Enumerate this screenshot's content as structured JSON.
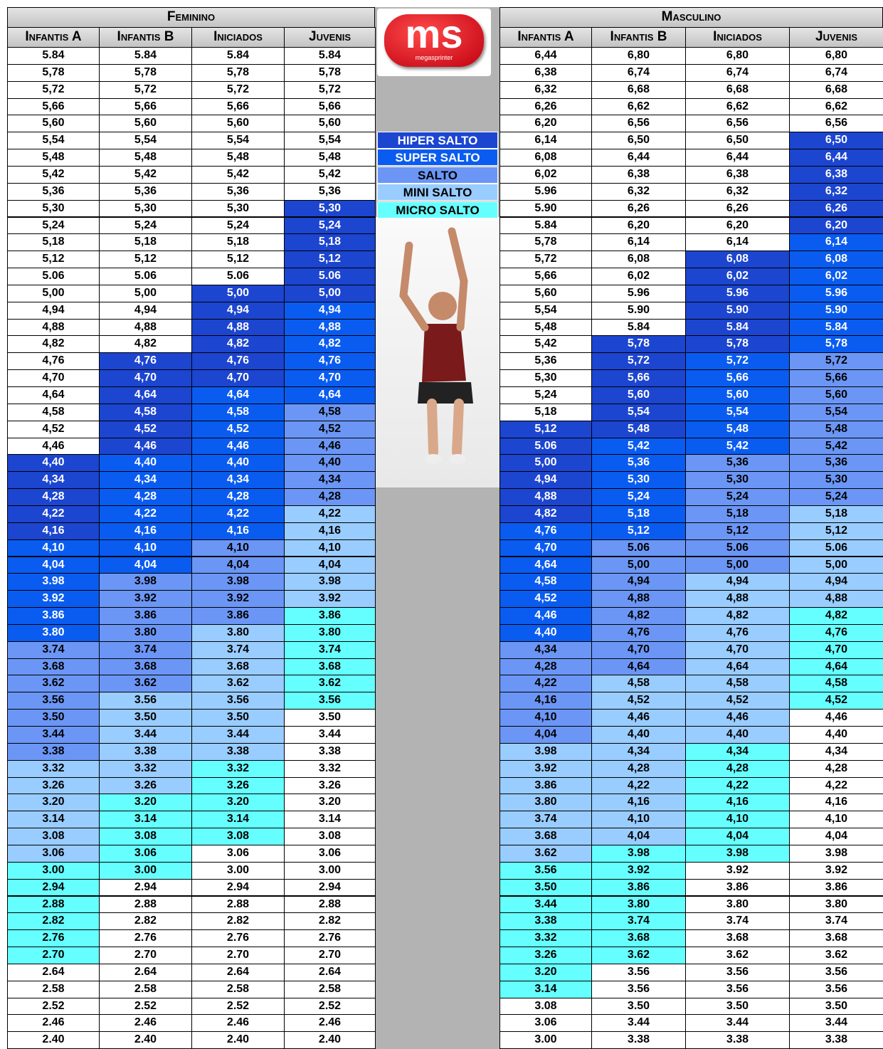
{
  "logo": {
    "text": "ms",
    "subtitle": "megasprinter"
  },
  "legend": {
    "items": [
      {
        "label": "HIPER SALTO",
        "color": "#1c45d0"
      },
      {
        "label": "SUPER SALTO",
        "color": "#0a5cf0"
      },
      {
        "label": "SALTO",
        "color": "#6b96f5"
      },
      {
        "label": "MINI SALTO",
        "color": "#99ccff"
      },
      {
        "label": "MICRO SALTO",
        "color": "#66ffff"
      }
    ]
  },
  "female": {
    "title": "Feminino",
    "columns": [
      {
        "name": "Infantis A",
        "values": [
          "5.84",
          "5,78",
          "5,72",
          "5,66",
          "5,60",
          "5,54",
          "5,48",
          "5,42",
          "5,36",
          "5,30",
          "5,24",
          "5,18",
          "5,12",
          "5.06",
          "5,00",
          "4,94",
          "4,88",
          "4,82",
          "4,76",
          "4,70",
          "4,64",
          "4,58",
          "4,52",
          "4,46",
          "4,40",
          "4,34",
          "4,28",
          "4,22",
          "4,16",
          "4,10",
          "4,04",
          "3.98",
          "3.92",
          "3.86",
          "3.80",
          "3.74",
          "3.68",
          "3.62",
          "3.56",
          "3.50",
          "3.44",
          "3.38",
          "3.32",
          "3.26",
          "3.20",
          "3.14",
          "3.08",
          "3.06",
          "3.00",
          "2.94",
          "2.88",
          "2.82",
          "2.76",
          "2.70",
          "2.64",
          "2.58",
          "2.52",
          "2.46",
          "2.40"
        ]
      },
      {
        "name": "Infantis B",
        "values": [
          "5.84",
          "5,78",
          "5,72",
          "5,66",
          "5,60",
          "5,54",
          "5,48",
          "5,42",
          "5,36",
          "5,30",
          "5,24",
          "5,18",
          "5,12",
          "5.06",
          "5,00",
          "4,94",
          "4,88",
          "4,82",
          "4,76",
          "4,70",
          "4,64",
          "4,58",
          "4,52",
          "4,46",
          "4,40",
          "4,34",
          "4,28",
          "4,22",
          "4,16",
          "4,10",
          "4,04",
          "3.98",
          "3.92",
          "3.86",
          "3.80",
          "3.74",
          "3.68",
          "3.62",
          "3.56",
          "3.50",
          "3.44",
          "3.38",
          "3.32",
          "3.26",
          "3.20",
          "3.14",
          "3.08",
          "3.06",
          "3.00",
          "2.94",
          "2.88",
          "2.82",
          "2.76",
          "2.70",
          "2.64",
          "2.58",
          "2.52",
          "2.46",
          "2.40"
        ]
      },
      {
        "name": "Iniciados",
        "values": [
          "5.84",
          "5,78",
          "5,72",
          "5,66",
          "5,60",
          "5,54",
          "5,48",
          "5,42",
          "5,36",
          "5,30",
          "5,24",
          "5,18",
          "5,12",
          "5.06",
          "5,00",
          "4,94",
          "4,88",
          "4,82",
          "4,76",
          "4,70",
          "4,64",
          "4,58",
          "4,52",
          "4,46",
          "4,40",
          "4,34",
          "4,28",
          "4,22",
          "4,16",
          "4,10",
          "4,04",
          "3.98",
          "3.92",
          "3.86",
          "3.80",
          "3.74",
          "3.68",
          "3.62",
          "3.56",
          "3.50",
          "3.44",
          "3.38",
          "3.32",
          "3.26",
          "3.20",
          "3.14",
          "3.08",
          "3.06",
          "3.00",
          "2.94",
          "2.88",
          "2.82",
          "2.76",
          "2.70",
          "2.64",
          "2.58",
          "2.52",
          "2.46",
          "2.40"
        ]
      },
      {
        "name": "Juvenis",
        "values": [
          "5.84",
          "5,78",
          "5,72",
          "5,66",
          "5,60",
          "5,54",
          "5,48",
          "5,42",
          "5,36",
          "5,30",
          "5,24",
          "5,18",
          "5,12",
          "5.06",
          "5,00",
          "4,94",
          "4,88",
          "4,82",
          "4,76",
          "4,70",
          "4,64",
          "4,58",
          "4,52",
          "4,46",
          "4,40",
          "4,34",
          "4,28",
          "4,22",
          "4,16",
          "4,10",
          "4,04",
          "3.98",
          "3.92",
          "3.86",
          "3.80",
          "3.74",
          "3.68",
          "3.62",
          "3.56",
          "3.50",
          "3.44",
          "3.38",
          "3.32",
          "3.26",
          "3.20",
          "3.14",
          "3.08",
          "3.06",
          "3.00",
          "2.94",
          "2.88",
          "2.82",
          "2.76",
          "2.70",
          "2.64",
          "2.58",
          "2.52",
          "2.46",
          "2.40"
        ]
      }
    ]
  },
  "male": {
    "title": "Masculino",
    "columns": [
      {
        "name": "Infantis A",
        "values": [
          "6,44",
          "6,38",
          "6,32",
          "6,26",
          "6,20",
          "6,14",
          "6,08",
          "6,02",
          "5.96",
          "5.90",
          "5.84",
          "5,78",
          "5,72",
          "5,66",
          "5,60",
          "5,54",
          "5,48",
          "5,42",
          "5,36",
          "5,30",
          "5,24",
          "5,18",
          "5,12",
          "5.06",
          "5,00",
          "4,94",
          "4,88",
          "4,82",
          "4,76",
          "4,70",
          "4,64",
          "4,58",
          "4,52",
          "4,46",
          "4,40",
          "4,34",
          "4,28",
          "4,22",
          "4,16",
          "4,10",
          "4,04",
          "3.98",
          "3.92",
          "3.86",
          "3.80",
          "3.74",
          "3.68",
          "3.62",
          "3.56",
          "3.50",
          "3.44",
          "3.38",
          "3.32",
          "3.26",
          "3.20",
          "3.14",
          "3.08",
          "3.06",
          "3.00"
        ]
      },
      {
        "name": "Infantis B",
        "values": [
          "6,80",
          "6,74",
          "6,68",
          "6,62",
          "6,56",
          "6,50",
          "6,44",
          "6,38",
          "6,32",
          "6,26",
          "6,20",
          "6,14",
          "6,08",
          "6,02",
          "5.96",
          "5.90",
          "5.84",
          "5,78",
          "5,72",
          "5,66",
          "5,60",
          "5,54",
          "5,48",
          "5,42",
          "5,36",
          "5,30",
          "5,24",
          "5,18",
          "5,12",
          "5.06",
          "5,00",
          "4,94",
          "4,88",
          "4,82",
          "4,76",
          "4,70",
          "4,64",
          "4,58",
          "4,52",
          "4,46",
          "4,40",
          "4,34",
          "4,28",
          "4,22",
          "4,16",
          "4,10",
          "4,04",
          "3.98",
          "3.92",
          "3.86",
          "3.80",
          "3.74",
          "3.68",
          "3.62",
          "3.56",
          "3.56",
          "3.50",
          "3.44",
          "3.38"
        ]
      },
      {
        "name": "Iniciados",
        "values": [
          "6,80",
          "6,74",
          "6,68",
          "6,62",
          "6,56",
          "6,50",
          "6,44",
          "6,38",
          "6,32",
          "6,26",
          "6,20",
          "6,14",
          "6,08",
          "6,02",
          "5.96",
          "5.90",
          "5.84",
          "5,78",
          "5,72",
          "5,66",
          "5,60",
          "5,54",
          "5,48",
          "5,42",
          "5,36",
          "5,30",
          "5,24",
          "5,18",
          "5,12",
          "5.06",
          "5,00",
          "4,94",
          "4,88",
          "4,82",
          "4,76",
          "4,70",
          "4,64",
          "4,58",
          "4,52",
          "4,46",
          "4,40",
          "4,34",
          "4,28",
          "4,22",
          "4,16",
          "4,10",
          "4,04",
          "3.98",
          "3.92",
          "3.86",
          "3.80",
          "3.74",
          "3.68",
          "3.62",
          "3.56",
          "3.56",
          "3.50",
          "3.44",
          "3.38"
        ]
      },
      {
        "name": "Juvenis",
        "values": [
          "6,80",
          "6,74",
          "6,68",
          "6,62",
          "6,56",
          "6,50",
          "6,44",
          "6,38",
          "6,32",
          "6,26",
          "6,20",
          "6,14",
          "6,08",
          "6,02",
          "5.96",
          "5.90",
          "5.84",
          "5,78",
          "5,72",
          "5,66",
          "5,60",
          "5,54",
          "5,48",
          "5,42",
          "5,36",
          "5,30",
          "5,24",
          "5,18",
          "5,12",
          "5.06",
          "5,00",
          "4,94",
          "4,88",
          "4,82",
          "4,76",
          "4,70",
          "4,64",
          "4,58",
          "4,52",
          "4,46",
          "4,40",
          "4,34",
          "4,28",
          "4,22",
          "4,16",
          "4,10",
          "4,04",
          "3.98",
          "3.92",
          "3.86",
          "3.80",
          "3.74",
          "3.68",
          "3.62",
          "3.56",
          "3.56",
          "3.50",
          "3.44",
          "3.38"
        ]
      }
    ]
  }
}
